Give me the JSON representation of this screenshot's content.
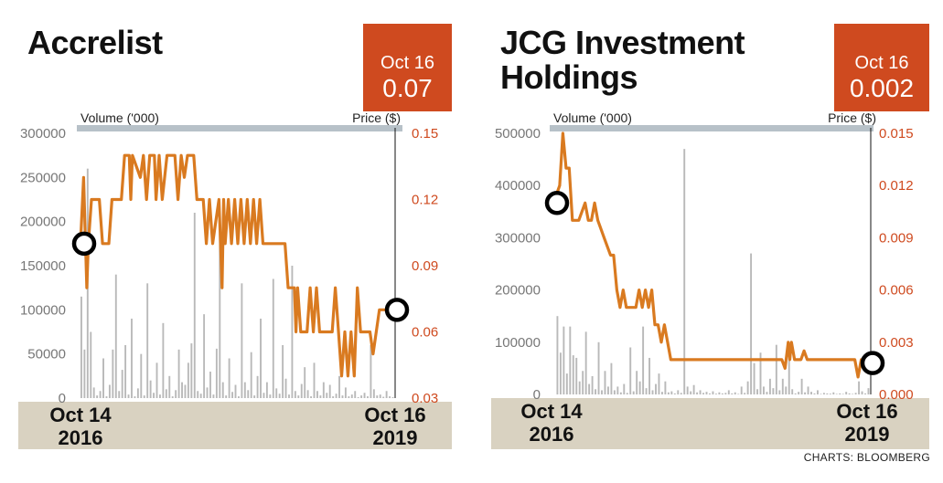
{
  "charts": [
    {
      "id": "left",
      "title_lines": [
        "Accrelist"
      ],
      "badge": {
        "date": "Oct 16",
        "value": "0.07"
      },
      "volume_label": "Volume ('000)",
      "price_label": "Price ($)",
      "x_start": [
        "Oct 14",
        "2016"
      ],
      "x_end": [
        "Oct 16",
        "2019"
      ]
    },
    {
      "id": "right",
      "title_lines": [
        "JCG Investment",
        "Holdings"
      ],
      "badge": {
        "date": "Oct 16",
        "value": "0.002"
      },
      "volume_label": "Volume ('000)",
      "price_label": "Price ($)",
      "x_start": [
        "Oct 14",
        "2016"
      ],
      "x_end": [
        "Oct 16",
        "2019"
      ]
    }
  ],
  "credit": "CHARTS: BLOOMBERG",
  "colors": {
    "price_line": "#d97a20",
    "volume_bars": "#b9b9b9",
    "header_band": "#b7c1c8",
    "badge": "#cf4a1f",
    "axis_right": "#cf4a1f",
    "axis_left": "#777777"
  },
  "chart_data": [
    {
      "type": "bar+line",
      "title": "Accrelist",
      "left_axis": {
        "label": "Volume ('000)",
        "ylim": [
          0,
          300000
        ],
        "ticks": [
          "0",
          "50000",
          "100000",
          "150000",
          "200000",
          "250000",
          "300000"
        ]
      },
      "right_axis": {
        "label": "Price ($)",
        "ylim": [
          0.03,
          0.15
        ],
        "ticks": [
          "0.03",
          "0.06",
          "0.09",
          "0.12",
          "0.15"
        ]
      },
      "x_range": [
        "Oct 14 2016",
        "Oct 16 2019"
      ],
      "highlights": [
        {
          "label": "Oct 14 2016",
          "price": 0.1
        },
        {
          "label": "Oct 16 2019",
          "price": 0.07
        }
      ],
      "series": [
        {
          "name": "Price ($)",
          "kind": "line",
          "points": [
            [
              0,
              0.1
            ],
            [
              0.01,
              0.13
            ],
            [
              0.02,
              0.08
            ],
            [
              0.025,
              0.1
            ],
            [
              0.035,
              0.12
            ],
            [
              0.06,
              0.12
            ],
            [
              0.07,
              0.1
            ],
            [
              0.09,
              0.1
            ],
            [
              0.1,
              0.12
            ],
            [
              0.13,
              0.12
            ],
            [
              0.14,
              0.14
            ],
            [
              0.155,
              0.14
            ],
            [
              0.16,
              0.12
            ],
            [
              0.165,
              0.14
            ],
            [
              0.19,
              0.13
            ],
            [
              0.2,
              0.14
            ],
            [
              0.21,
              0.12
            ],
            [
              0.22,
              0.14
            ],
            [
              0.235,
              0.14
            ],
            [
              0.24,
              0.12
            ],
            [
              0.25,
              0.14
            ],
            [
              0.26,
              0.12
            ],
            [
              0.275,
              0.14
            ],
            [
              0.3,
              0.14
            ],
            [
              0.31,
              0.12
            ],
            [
              0.32,
              0.14
            ],
            [
              0.33,
              0.13
            ],
            [
              0.34,
              0.14
            ],
            [
              0.36,
              0.14
            ],
            [
              0.37,
              0.12
            ],
            [
              0.39,
              0.12
            ],
            [
              0.4,
              0.1
            ],
            [
              0.41,
              0.12
            ],
            [
              0.42,
              0.1
            ],
            [
              0.43,
              0.11
            ],
            [
              0.44,
              0.12
            ],
            [
              0.45,
              0.08
            ],
            [
              0.455,
              0.12
            ],
            [
              0.46,
              0.1
            ],
            [
              0.47,
              0.12
            ],
            [
              0.48,
              0.1
            ],
            [
              0.49,
              0.12
            ],
            [
              0.5,
              0.1
            ],
            [
              0.51,
              0.12
            ],
            [
              0.52,
              0.1
            ],
            [
              0.53,
              0.12
            ],
            [
              0.54,
              0.1
            ],
            [
              0.55,
              0.12
            ],
            [
              0.56,
              0.1
            ],
            [
              0.57,
              0.12
            ],
            [
              0.58,
              0.1
            ],
            [
              0.6,
              0.1
            ],
            [
              0.62,
              0.1
            ],
            [
              0.65,
              0.1
            ],
            [
              0.66,
              0.08
            ],
            [
              0.68,
              0.08
            ],
            [
              0.685,
              0.06
            ],
            [
              0.69,
              0.08
            ],
            [
              0.7,
              0.06
            ],
            [
              0.72,
              0.06
            ],
            [
              0.73,
              0.08
            ],
            [
              0.74,
              0.06
            ],
            [
              0.75,
              0.08
            ],
            [
              0.76,
              0.06
            ],
            [
              0.8,
              0.06
            ],
            [
              0.81,
              0.08
            ],
            [
              0.82,
              0.06
            ],
            [
              0.83,
              0.04
            ],
            [
              0.84,
              0.06
            ],
            [
              0.85,
              0.04
            ],
            [
              0.86,
              0.06
            ],
            [
              0.87,
              0.04
            ],
            [
              0.88,
              0.08
            ],
            [
              0.89,
              0.06
            ],
            [
              0.92,
              0.06
            ],
            [
              0.93,
              0.05
            ],
            [
              0.95,
              0.07
            ],
            [
              1.0,
              0.07
            ]
          ]
        },
        {
          "name": "Volume ('000)",
          "kind": "bar",
          "values": [
            115000,
            55000,
            260000,
            75000,
            12000,
            3000,
            8000,
            45000,
            2000,
            15000,
            55000,
            140000,
            8000,
            32000,
            60000,
            4000,
            90000,
            2000,
            11000,
            50000,
            3000,
            130000,
            20000,
            6000,
            40000,
            4000,
            85000,
            10000,
            25000,
            2000,
            9000,
            55000,
            18000,
            15000,
            40000,
            62000,
            210000,
            8000,
            5000,
            95000,
            12000,
            30000,
            4000,
            56000,
            210000,
            18000,
            3000,
            45000,
            7000,
            15000,
            2000,
            130000,
            18000,
            9000,
            52000,
            3000,
            25000,
            90000,
            6000,
            18000,
            4000,
            135000,
            11000,
            5000,
            60000,
            22000,
            4000,
            150000,
            8000,
            3000,
            16000,
            35000,
            9000,
            2000,
            40000,
            8000,
            3000,
            18000,
            6000,
            15000,
            2000,
            5000,
            25000,
            3000,
            12000,
            2000,
            4000,
            8000,
            1000,
            3000,
            6000,
            2000,
            60000,
            10000,
            3000,
            4000,
            1500,
            8000,
            2000,
            1000
          ]
        }
      ]
    },
    {
      "type": "bar+line",
      "title": "JCG Investment Holdings",
      "left_axis": {
        "label": "Volume ('000)",
        "ylim": [
          0,
          500000
        ],
        "ticks": [
          "0",
          "100000",
          "200000",
          "300000",
          "400000",
          "500000"
        ]
      },
      "right_axis": {
        "label": "Price ($)",
        "ylim": [
          0,
          0.015
        ],
        "ticks": [
          "0.000",
          "0.003",
          "0.006",
          "0.009",
          "0.012",
          "0.015"
        ]
      },
      "x_range": [
        "Oct 14 2016",
        "Oct 16 2019"
      ],
      "highlights": [
        {
          "label": "Oct 14 2016",
          "price": 0.011
        },
        {
          "label": "Oct 16 2019",
          "price": 0.0018
        }
      ],
      "series": [
        {
          "name": "Price ($)",
          "kind": "line",
          "points": [
            [
              0,
              0.011
            ],
            [
              0.02,
              0.012
            ],
            [
              0.03,
              0.015
            ],
            [
              0.04,
              0.013
            ],
            [
              0.05,
              0.013
            ],
            [
              0.06,
              0.01
            ],
            [
              0.08,
              0.01
            ],
            [
              0.1,
              0.011
            ],
            [
              0.11,
              0.01
            ],
            [
              0.12,
              0.01
            ],
            [
              0.13,
              0.011
            ],
            [
              0.14,
              0.01
            ],
            [
              0.16,
              0.009
            ],
            [
              0.18,
              0.008
            ],
            [
              0.19,
              0.008
            ],
            [
              0.2,
              0.006
            ],
            [
              0.21,
              0.005
            ],
            [
              0.22,
              0.006
            ],
            [
              0.23,
              0.005
            ],
            [
              0.26,
              0.005
            ],
            [
              0.27,
              0.006
            ],
            [
              0.28,
              0.005
            ],
            [
              0.29,
              0.006
            ],
            [
              0.3,
              0.005
            ],
            [
              0.31,
              0.006
            ],
            [
              0.32,
              0.004
            ],
            [
              0.33,
              0.004
            ],
            [
              0.34,
              0.003
            ],
            [
              0.35,
              0.004
            ],
            [
              0.36,
              0.003
            ],
            [
              0.37,
              0.002
            ],
            [
              0.42,
              0.002
            ],
            [
              0.45,
              0.002
            ],
            [
              0.55,
              0.002
            ],
            [
              0.7,
              0.002
            ],
            [
              0.72,
              0.002
            ],
            [
              0.73,
              0.0015
            ],
            [
              0.74,
              0.003
            ],
            [
              0.745,
              0.002
            ],
            [
              0.75,
              0.003
            ],
            [
              0.76,
              0.002
            ],
            [
              0.78,
              0.002
            ],
            [
              0.79,
              0.0025
            ],
            [
              0.8,
              0.002
            ],
            [
              0.95,
              0.002
            ],
            [
              0.96,
              0.001
            ],
            [
              0.97,
              0.002
            ],
            [
              0.985,
              0.002
            ],
            [
              0.99,
              0.0015
            ],
            [
              1.0,
              0.0018
            ]
          ]
        },
        {
          "name": "Volume ('000)",
          "kind": "bar",
          "values": [
            0,
            150000,
            80000,
            130000,
            40000,
            130000,
            75000,
            70000,
            25000,
            45000,
            120000,
            20000,
            35000,
            10000,
            100000,
            8000,
            45000,
            15000,
            60000,
            8000,
            15000,
            4000,
            20000,
            3000,
            90000,
            6000,
            45000,
            25000,
            130000,
            12000,
            70000,
            8000,
            20000,
            40000,
            5000,
            25000,
            4000,
            6000,
            2000,
            8000,
            3000,
            470000,
            15000,
            6000,
            18000,
            4000,
            8000,
            3000,
            5000,
            2000,
            6000,
            1500,
            4000,
            2000,
            3000,
            8000,
            2000,
            4000,
            1000,
            15000,
            3000,
            25000,
            270000,
            60000,
            10000,
            80000,
            15000,
            5000,
            30000,
            12000,
            95000,
            8000,
            30000,
            15000,
            80000,
            10000,
            2000,
            5000,
            30000,
            4000,
            15000,
            5000,
            2000,
            8000,
            1000,
            3000,
            2000,
            1500,
            4000,
            1000,
            2000,
            1000,
            5000,
            2000,
            1000,
            3000,
            25000,
            6000,
            2000,
            12000
          ]
        }
      ]
    }
  ]
}
